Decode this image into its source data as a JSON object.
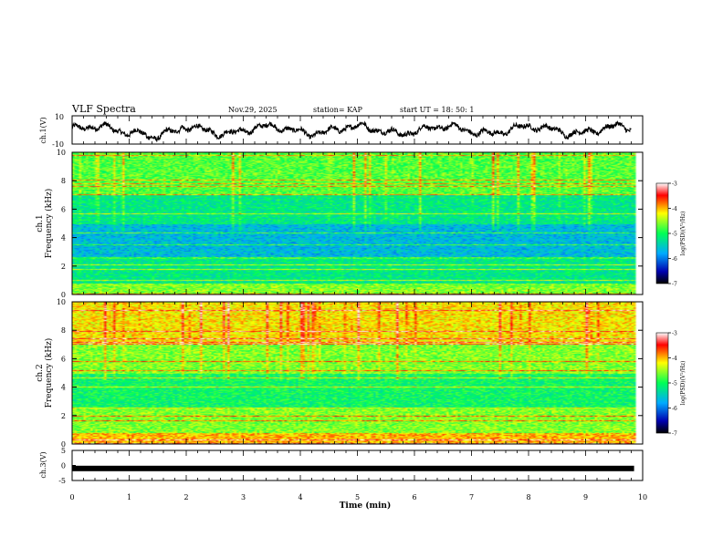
{
  "header": {
    "title": "VLF Spectra",
    "date": "Nov.29, 2025",
    "station": "station= KAP",
    "start_ut": "start  UT  =   18: 50: 1"
  },
  "chart_data": [
    {
      "type": "line",
      "panel": "ch1-waveform",
      "ylabel": "ch.1(V)",
      "ylim": [
        -10,
        10
      ],
      "ytick_labels": [
        "10",
        "-10"
      ],
      "xlim": [
        0,
        10
      ],
      "description_values": "oscillating signal around 0 V, amplitude ~ ±6 V, ending near 9.8 min"
    },
    {
      "type": "heatmap",
      "panel": "ch1-spectrogram",
      "ylabel": "ch.1\nFrequency (kHz)",
      "ylabel_line1": "ch.1",
      "ylabel_line2": "Frequency (kHz)",
      "ylim": [
        0,
        10
      ],
      "ytick_labels": [
        "10",
        "8",
        "6",
        "4",
        "2",
        "0"
      ],
      "xlim": [
        0,
        10
      ],
      "data_end_min": 9.85,
      "dominant_level": -5.2,
      "colorbar": {
        "label": "log(PSD)(V²/Hz)",
        "range": [
          -7,
          -3
        ],
        "tick_labels": [
          "-3",
          "-4",
          "-5",
          "-6",
          "-7"
        ]
      }
    },
    {
      "type": "heatmap",
      "panel": "ch2-spectrogram",
      "ylabel_line1": "ch.2",
      "ylabel_line2": "Frequency (kHz)",
      "ylim": [
        0,
        10
      ],
      "ytick_labels": [
        "10",
        "8",
        "6",
        "4",
        "2",
        "0"
      ],
      "xlim": [
        0,
        10
      ],
      "data_end_min": 9.85,
      "dominant_level": -4.6,
      "colorbar": {
        "label": "log(PSD)(V²/Hz)",
        "range": [
          -7,
          -3
        ],
        "tick_labels": [
          "-3",
          "-4",
          "-5",
          "-6",
          "-7"
        ]
      }
    },
    {
      "type": "line",
      "panel": "ch3-waveform",
      "ylabel": "ch.3(V)",
      "ylim": [
        -5,
        5
      ],
      "ytick_labels": [
        "5",
        "0",
        "-5"
      ],
      "constant_value": -1,
      "xlim": [
        0,
        10
      ],
      "xlabel": "Time (min)",
      "xtick_labels": [
        "0",
        "1",
        "2",
        "3",
        "4",
        "5",
        "6",
        "7",
        "8",
        "9",
        "10"
      ]
    }
  ],
  "colors": {
    "low": "#000080",
    "mid_low": "#00aaff",
    "mid": "#00ff44",
    "mid_high": "#ffff00",
    "high": "#ff0000"
  }
}
